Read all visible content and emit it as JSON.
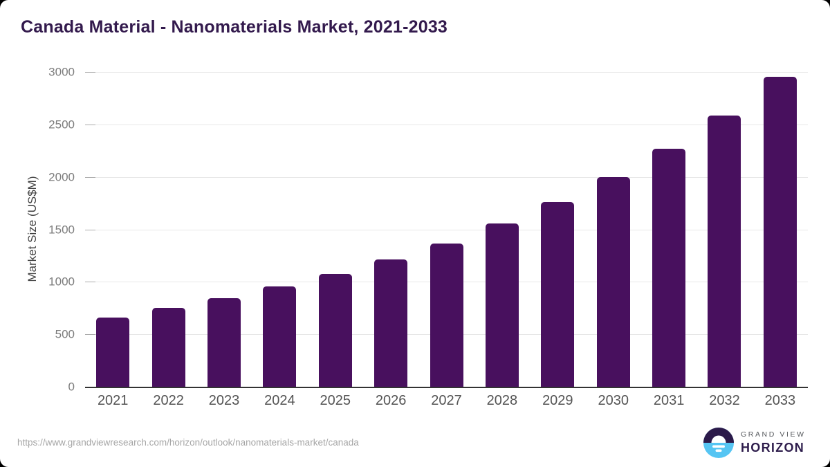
{
  "page": {
    "title": "Canada Material - Nanomaterials Market, 2021-2033",
    "source_url": "https://www.grandviewresearch.com/horizon/outlook/nanomaterials-market/canada"
  },
  "logo": {
    "line1": "GRAND VIEW",
    "line2": "HORIZON"
  },
  "colors": {
    "bar": "#48105e",
    "title": "#331a4d",
    "axis_text": "#545454",
    "ytick_text": "#7c7c7c",
    "gridline": "#e7e7e7",
    "baseline": "#333333",
    "url_text": "#a6a6a6",
    "logo_dark": "#2c1a4a",
    "logo_blue": "#56c5f3"
  },
  "chart_data": {
    "type": "bar",
    "title": "Canada Material - Nanomaterials Market, 2021-2033",
    "xlabel": "",
    "ylabel": "Market Size (US$M)",
    "categories": [
      "2021",
      "2022",
      "2023",
      "2024",
      "2025",
      "2026",
      "2027",
      "2028",
      "2029",
      "2030",
      "2031",
      "2032",
      "2033"
    ],
    "values": [
      660,
      750,
      845,
      955,
      1075,
      1210,
      1365,
      1555,
      1760,
      2000,
      2270,
      2585,
      2955
    ],
    "ylim": [
      0,
      3000
    ],
    "yticks": [
      0,
      500,
      1000,
      1500,
      2000,
      2500,
      3000
    ],
    "grid": true,
    "legend": false,
    "bar_color": "#48105e"
  }
}
